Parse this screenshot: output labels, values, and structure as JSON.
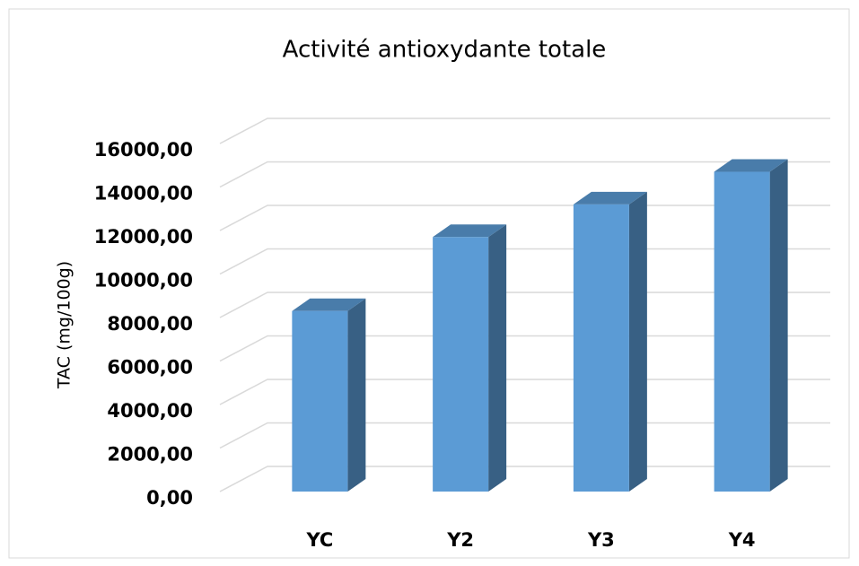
{
  "chart_data": {
    "type": "bar3d",
    "title": "Activité antioxydante totale",
    "y_label": "TAC (mg/100g)",
    "categories": [
      "YC",
      "Y2",
      "Y3",
      "Y4"
    ],
    "values": [
      8300,
      11700,
      13200,
      14700
    ],
    "color": "#5b9bd5",
    "ylim": [
      0,
      16000
    ],
    "yticks": [
      {
        "value": 0,
        "label": "0,00"
      },
      {
        "value": 2000,
        "label": "2000,00"
      },
      {
        "value": 4000,
        "label": "4000,00"
      },
      {
        "value": 6000,
        "label": "6000,00"
      },
      {
        "value": 8000,
        "label": "8000,00"
      },
      {
        "value": 10000,
        "label": "10000,00"
      },
      {
        "value": 12000,
        "label": "12000,00"
      },
      {
        "value": 14000,
        "label": "14000,00"
      },
      {
        "value": 16000,
        "label": "16000,00"
      }
    ],
    "grid": true
  }
}
